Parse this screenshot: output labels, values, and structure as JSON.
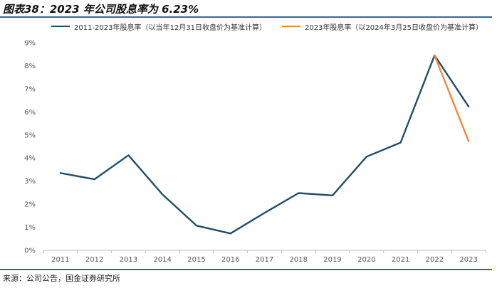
{
  "header": {
    "title": "图表38：2023 年公司股息率为 6.23%"
  },
  "footer": {
    "source": "来源：公司公告，国金证券研究所"
  },
  "colors": {
    "series_primary": "#1f4e6b",
    "series_secondary": "#ef8a3c",
    "rule": "#2a6f99",
    "axis": "#bfbfbf"
  },
  "chart_data": {
    "type": "line",
    "title": "",
    "xlabel": "",
    "ylabel": "",
    "categories": [
      "2011",
      "2012",
      "2013",
      "2014",
      "2015",
      "2016",
      "2017",
      "2018",
      "2019",
      "2020",
      "2021",
      "2022",
      "2023"
    ],
    "ylim": [
      0,
      9
    ],
    "yticks": [
      "0%",
      "1%",
      "2%",
      "3%",
      "4%",
      "5%",
      "6%",
      "7%",
      "8%",
      "9%"
    ],
    "grid": false,
    "legend_position": "top",
    "series": [
      {
        "name": "2011-2023年股息率（以当年12月31日收盘价为基准计算）",
        "x": [
          "2011",
          "2012",
          "2013",
          "2014",
          "2015",
          "2016",
          "2017",
          "2018",
          "2019",
          "2020",
          "2021",
          "2022",
          "2023"
        ],
        "values": [
          3.35,
          3.08,
          4.12,
          2.42,
          1.07,
          0.73,
          1.62,
          2.48,
          2.38,
          4.06,
          4.67,
          8.45,
          6.23
        ]
      },
      {
        "name": "2023年股息率（以2024年3月25日收盘价为基准计算）",
        "x": [
          "2022",
          "2023"
        ],
        "values": [
          8.45,
          4.73
        ]
      }
    ]
  }
}
